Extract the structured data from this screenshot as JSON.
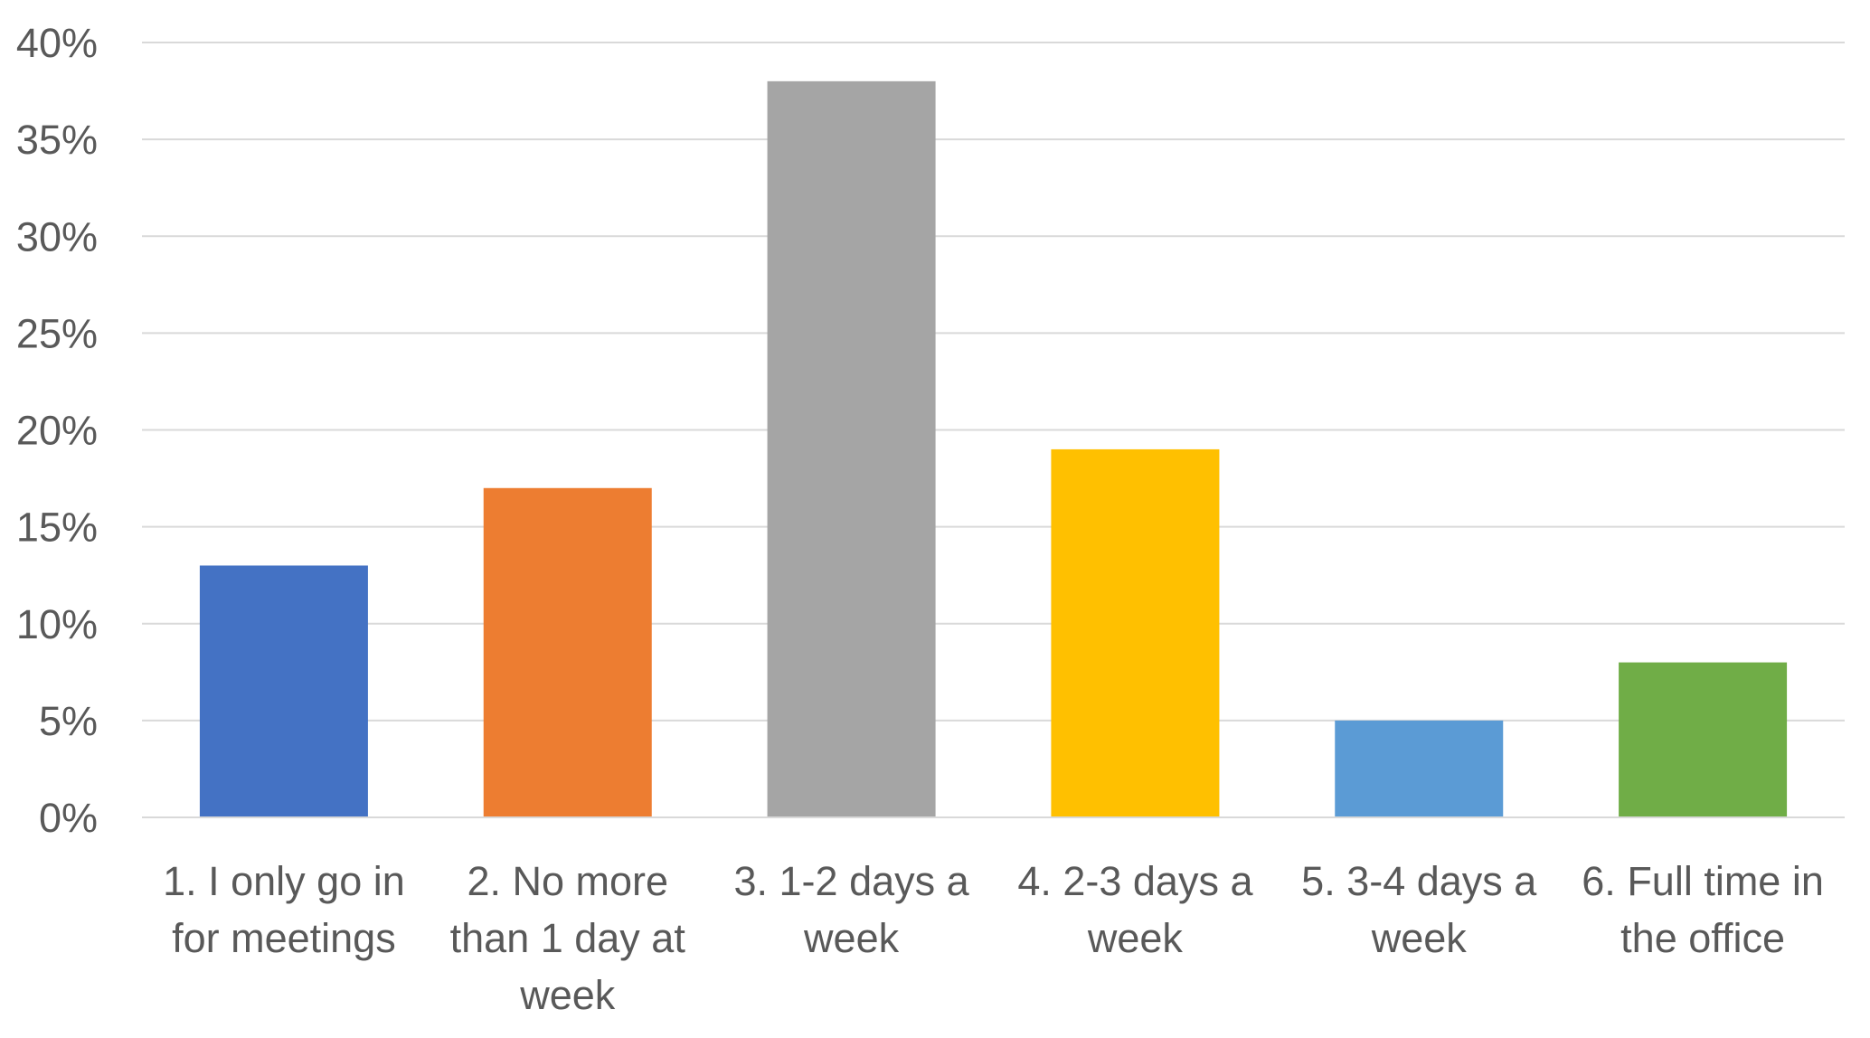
{
  "chart_data": {
    "type": "bar",
    "title": "",
    "xlabel": "",
    "ylabel": "",
    "ylim": [
      0,
      40
    ],
    "y_tick_step": 5,
    "y_tick_format": "percent",
    "grid": true,
    "legend": "none",
    "categories": [
      [
        "1.  I only go in",
        "for meetings"
      ],
      [
        "2.  No more",
        "than 1 day at",
        "week"
      ],
      [
        "3.  1-2 days a",
        "week"
      ],
      [
        "4.  2-3 days a",
        "week"
      ],
      [
        "5.  3-4 days a",
        "week"
      ],
      [
        "6.  Full time in",
        "the office"
      ]
    ],
    "values": [
      13,
      17,
      38,
      19,
      5,
      8
    ],
    "colors": [
      "#4472C4",
      "#ED7D31",
      "#A5A5A5",
      "#FFC000",
      "#5B9BD5",
      "#70AD47"
    ]
  }
}
